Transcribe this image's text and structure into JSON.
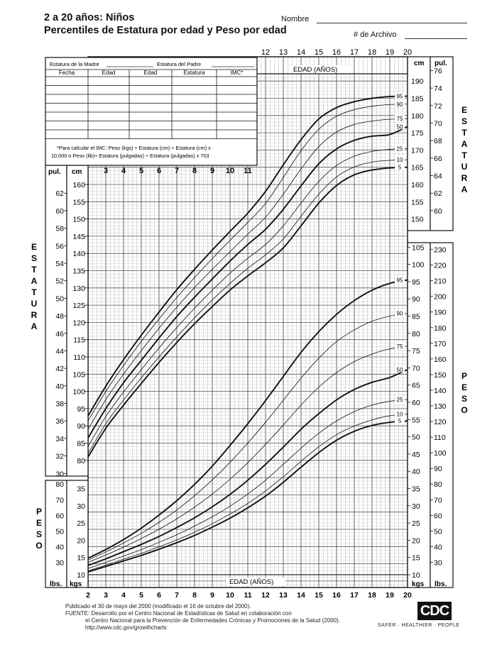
{
  "header": {
    "title_line1": "2 a 20 años: Niños",
    "title_line2": "Percentiles de Estatura por edad y Peso por edad",
    "name_label": "Nombre",
    "record_label": "# de Archivo"
  },
  "record_table": {
    "mother_label": "Estatura de la Madre",
    "father_label": "Estatura del Padre",
    "columns": [
      "Fecha",
      "Edad",
      "Edad",
      "Estatura",
      "IMC*"
    ],
    "bmi_note_line1": "*Para calcular el IMC: Peso (kgs) ÷ Estatura (cm) ÷ Estatura (cm) x",
    "bmi_note_line2": "10,000 o Peso (lib)÷ Estatura (pulgadas) ÷ Estatura (pulgadas) x 703"
  },
  "footer": {
    "line1": "Publicado el 30 de mayo del 2000 (modificado el 16 de octubre del 2000).",
    "line2": "FUENTE: Desarrollo por el Centro Nacional de Estadísticas de Salud en colaboración con",
    "line3": "el Centro Nacional para la Prevención de Enfermedades Crónicas y Promociones de la Salud (2000).",
    "line4": "http://www.cdc.gov/growthcharts",
    "logo_text": "CDC",
    "tagline": "SAFER · HEALTHIER · PEOPLE"
  },
  "chart_data": {
    "type": "line",
    "title": "Percentiles de Estatura por edad y Peso por edad",
    "xlabel": "EDAD (AÑOS)",
    "x_ticks_bottom": [
      2,
      3,
      4,
      5,
      6,
      7,
      8,
      9,
      10,
      11,
      12,
      13,
      14,
      15,
      16,
      17,
      18,
      19,
      20
    ],
    "x_ticks_top": [
      12,
      13,
      14,
      15,
      16,
      17,
      18,
      19,
      20
    ],
    "x_ticks_inner": [
      3,
      4,
      5,
      6,
      7,
      8,
      9,
      10,
      11
    ],
    "xlim": [
      2,
      20
    ],
    "stature": {
      "ylabel": "ESTATURA",
      "unit_cm": "cm",
      "unit_in": "pul.",
      "ylim_cm": [
        77,
        191
      ],
      "cm_ticks_left": [
        80,
        85,
        90,
        95,
        100,
        105,
        110,
        115,
        120,
        125,
        130,
        135,
        140,
        145,
        150,
        155,
        160
      ],
      "cm_ticks_right": [
        150,
        155,
        160,
        165,
        170,
        175,
        180,
        185,
        190
      ],
      "in_ticks_left": [
        30,
        32,
        34,
        36,
        38,
        40,
        42,
        44,
        46,
        48,
        50,
        52,
        54,
        56,
        58,
        60,
        62
      ],
      "in_ticks_right": [
        60,
        62,
        64,
        66,
        68,
        70,
        72,
        74,
        76
      ],
      "ages": [
        2,
        3,
        4,
        5,
        6,
        7,
        8,
        9,
        10,
        11,
        12,
        13,
        14,
        15,
        16,
        17,
        18,
        19,
        20
      ],
      "series": [
        {
          "name": "95",
          "values": [
            92.9,
            101.5,
            109.2,
            116.3,
            123,
            129.5,
            135.4,
            141,
            146.4,
            151.7,
            158,
            165.7,
            173,
            179,
            182.3,
            184,
            185,
            185.5,
            185.6
          ]
        },
        {
          "name": "90",
          "values": [
            91.5,
            100,
            107.5,
            114.5,
            121,
            127.2,
            133,
            138.5,
            143.8,
            149,
            154.5,
            162,
            169.8,
            176,
            179.8,
            181.7,
            182.7,
            183.2,
            183.3
          ]
        },
        {
          "name": "75",
          "values": [
            89,
            97.6,
            105,
            111.8,
            118.3,
            124.4,
            130.1,
            135.4,
            140.5,
            145.6,
            150.5,
            157.2,
            164.5,
            171,
            175.2,
            177.4,
            178.4,
            178.9,
            179.1
          ]
        },
        {
          "name": "50",
          "values": [
            86.5,
            95,
            102.5,
            109,
            115.5,
            121.7,
            127.3,
            132.6,
            137.8,
            142.6,
            147,
            152.8,
            159.6,
            166,
            170.3,
            172.8,
            174,
            174.5,
            176.8
          ]
        },
        {
          "name": "25",
          "values": [
            84,
            92.7,
            99.8,
            106.3,
            112.6,
            118.5,
            124.1,
            129.3,
            134.3,
            138.6,
            142.6,
            148,
            154.6,
            160.9,
            165.5,
            168.2,
            169.6,
            170.2,
            170.4
          ]
        },
        {
          "name": "10",
          "values": [
            82,
            90.6,
            97.5,
            103.9,
            110,
            115.8,
            121.3,
            126.5,
            131.3,
            135.7,
            139.6,
            144.2,
            150.8,
            157.2,
            162.2,
            165.1,
            166.5,
            167,
            167.2
          ]
        },
        {
          "name": "5",
          "values": [
            81,
            89.3,
            96,
            102.3,
            108.4,
            114.2,
            119.6,
            124.6,
            129.4,
            133.5,
            137.3,
            141.6,
            148,
            154.6,
            159.7,
            162.8,
            164.2,
            164.8,
            165
          ]
        }
      ]
    },
    "weight": {
      "ylabel": "PESO",
      "unit_kg": "kgs",
      "unit_lb": "lbs.",
      "ylim_kg": [
        9,
        107
      ],
      "kg_ticks_left": [
        10,
        15,
        20,
        25,
        30,
        35
      ],
      "kg_ticks_right": [
        10,
        15,
        20,
        25,
        30,
        35,
        40,
        45,
        50,
        55,
        60,
        65,
        70,
        75,
        80,
        85,
        90,
        95,
        100,
        105
      ],
      "lb_ticks_left": [
        30,
        40,
        50,
        60,
        70,
        80
      ],
      "lb_ticks_right": [
        30,
        40,
        50,
        60,
        70,
        80,
        90,
        100,
        110,
        120,
        130,
        140,
        150,
        160,
        170,
        180,
        190,
        200,
        210,
        220,
        230
      ],
      "ages": [
        2,
        3,
        4,
        5,
        6,
        7,
        8,
        9,
        10,
        11,
        12,
        13,
        14,
        15,
        16,
        17,
        18,
        19,
        20
      ],
      "series": [
        {
          "name": "95",
          "values": [
            14.8,
            17.3,
            20.2,
            23.5,
            27.3,
            31.5,
            36.2,
            41.5,
            47.5,
            53.8,
            60.5,
            67.5,
            74.5,
            80.5,
            85.5,
            89.5,
            92.5,
            94.5,
            95.5
          ]
        },
        {
          "name": "90",
          "values": [
            14.3,
            16.6,
            19.2,
            22,
            25.2,
            28.8,
            32.9,
            37.5,
            42.6,
            48.2,
            54.2,
            60.6,
            67,
            72.8,
            77.6,
            81,
            83.5,
            85,
            85.8
          ]
        },
        {
          "name": "75",
          "values": [
            13.6,
            15.7,
            18,
            20.5,
            23.2,
            26.2,
            29.6,
            33.4,
            37.7,
            42.5,
            47.8,
            53.4,
            59.2,
            64.4,
            68.6,
            71.8,
            74,
            75.5,
            76.3
          ]
        },
        {
          "name": "50",
          "values": [
            12.7,
            14.6,
            16.7,
            18.8,
            21.1,
            23.7,
            26.5,
            29.7,
            33.3,
            37.4,
            42,
            47,
            52.2,
            56.7,
            60.7,
            63.7,
            65.8,
            67.2,
            69.5
          ]
        },
        {
          "name": "25",
          "values": [
            11.8,
            13.6,
            15.4,
            17.3,
            19.4,
            21.6,
            24.1,
            26.8,
            29.9,
            33.4,
            37.4,
            42,
            46.7,
            51,
            54.6,
            57.3,
            59.2,
            60.3,
            60.8
          ]
        },
        {
          "name": "10",
          "values": [
            11.1,
            12.8,
            14.5,
            16.2,
            18.1,
            20.1,
            22.3,
            24.8,
            27.6,
            30.7,
            34.3,
            38.4,
            42.9,
            47.1,
            50.6,
            53.1,
            54.9,
            56.1,
            56.6
          ]
        },
        {
          "name": "5",
          "values": [
            10.8,
            12.4,
            14,
            15.6,
            17.4,
            19.3,
            21.4,
            23.8,
            26.4,
            29.4,
            32.8,
            36.8,
            41.2,
            45.4,
            49,
            51.6,
            53.3,
            54.2,
            54.6
          ]
        }
      ]
    }
  }
}
